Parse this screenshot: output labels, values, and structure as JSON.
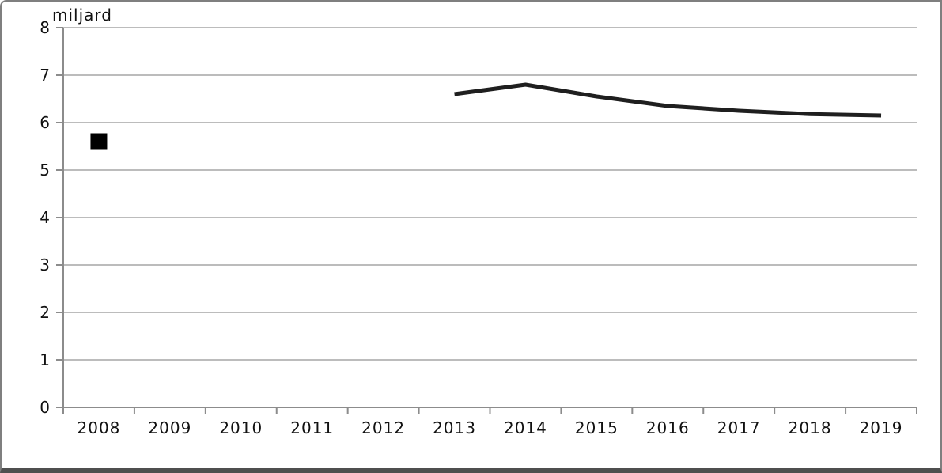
{
  "window": {
    "background": "#ffffff",
    "frame_border_color": "#7f7f7f",
    "frame_bottom_color": "#4f4f4f"
  },
  "chart_data": {
    "type": "line",
    "title": "",
    "ylabel": "miljard",
    "xlabel": "",
    "categories": [
      "2008",
      "2009",
      "2010",
      "2011",
      "2012",
      "2013",
      "2014",
      "2015",
      "2016",
      "2017",
      "2018",
      "2019"
    ],
    "ylim": [
      0,
      8
    ],
    "y_ticks": [
      0,
      1,
      2,
      3,
      4,
      5,
      6,
      7,
      8
    ],
    "grid": "horizontal",
    "legend": "none",
    "series": [
      {
        "name": "isolated-point-2008",
        "type": "scatter",
        "marker": "square",
        "color": "#000000",
        "values": [
          5.6,
          null,
          null,
          null,
          null,
          null,
          null,
          null,
          null,
          null,
          null,
          null
        ]
      },
      {
        "name": "trend-2013-2019",
        "type": "line",
        "color": "#1f1f1f",
        "values": [
          null,
          null,
          null,
          null,
          null,
          6.6,
          6.8,
          6.55,
          6.35,
          6.25,
          6.18,
          6.15
        ]
      }
    ],
    "colors": {
      "gridline": "#a6a6a6",
      "axis": "#8c8c8c",
      "text": "#111111"
    }
  }
}
